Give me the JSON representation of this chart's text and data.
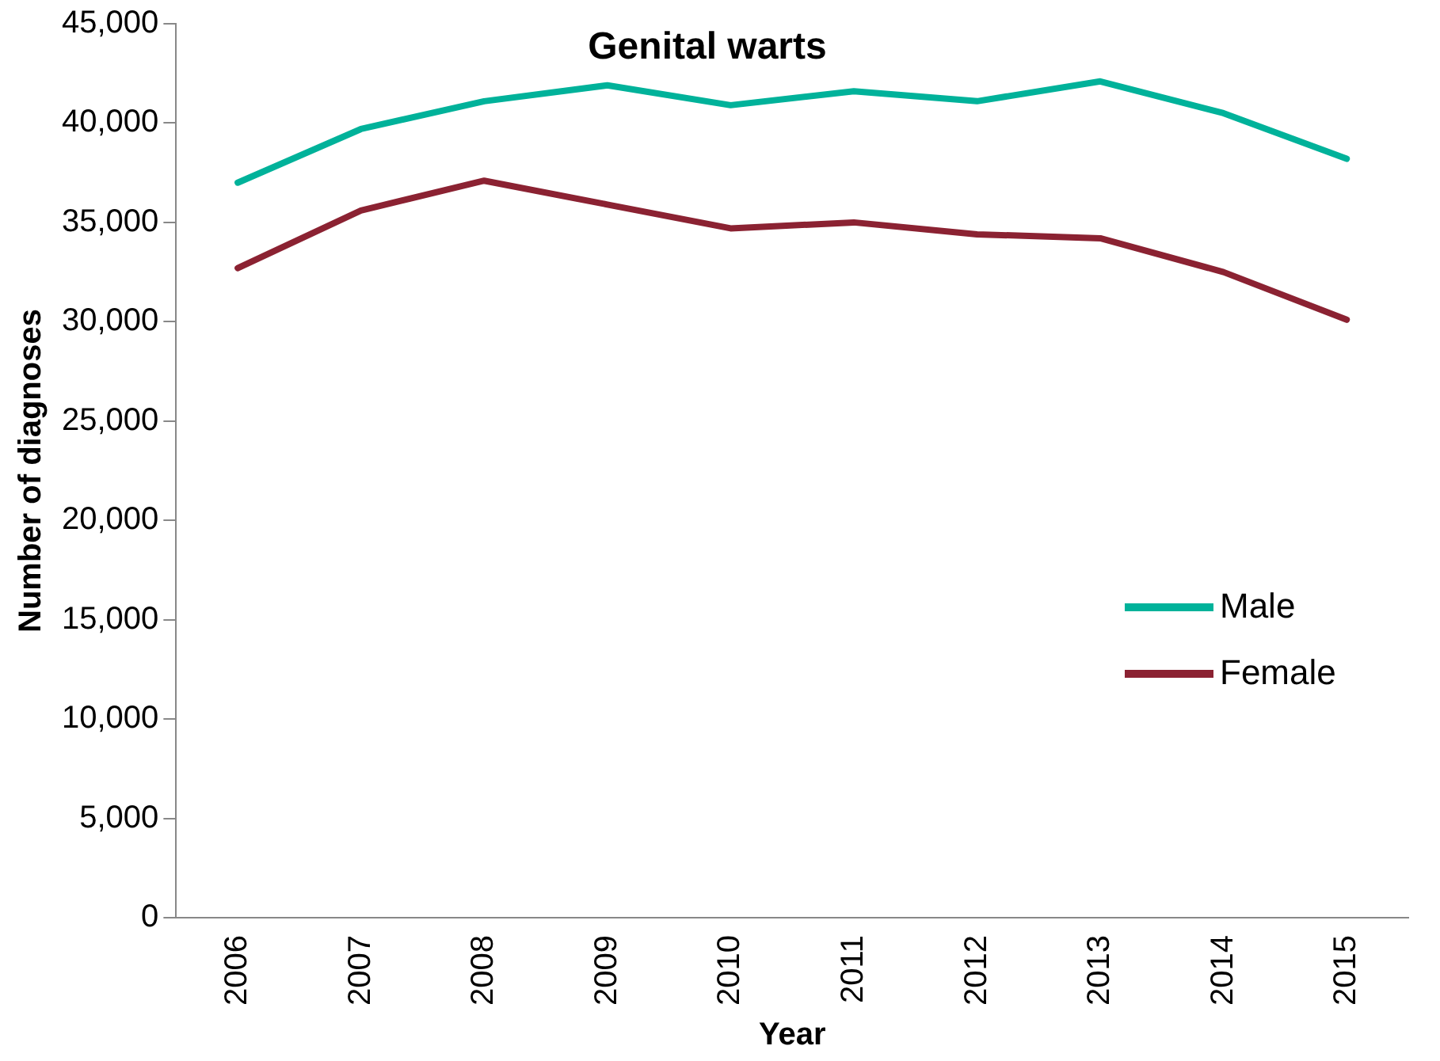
{
  "chart_data": {
    "type": "line",
    "title": "Genital warts",
    "xlabel": "Year",
    "ylabel": "Number of diagnoses",
    "categories": [
      "2006",
      "2007",
      "2008",
      "2009",
      "2010",
      "2011",
      "2012",
      "2013",
      "2014",
      "2015"
    ],
    "series": [
      {
        "name": "Male",
        "color": "#00b29a",
        "values": [
          37000,
          39700,
          41100,
          41900,
          40900,
          41600,
          41100,
          42100,
          40500,
          38200
        ]
      },
      {
        "name": "Female",
        "color": "#8b2232",
        "values": [
          32700,
          35600,
          37100,
          35900,
          34700,
          35000,
          34400,
          34200,
          32500,
          30100
        ]
      }
    ],
    "ylim": [
      0,
      45000
    ],
    "yticks": [
      0,
      {
        "value": 5000,
        "label": "5,000"
      },
      {
        "value": 10000,
        "label": "10,000"
      },
      {
        "value": 15000,
        "label": "15,000"
      },
      {
        "value": 20000,
        "label": "20,000"
      },
      {
        "value": 25000,
        "label": "25,000"
      },
      {
        "value": 30000,
        "label": "30,000"
      },
      {
        "value": 35000,
        "label": "35,000"
      },
      {
        "value": 40000,
        "label": "40,000"
      },
      {
        "value": 45000,
        "label": "45,000"
      }
    ],
    "grid": false,
    "legend": "bottom right",
    "marker": "none",
    "line_style": "solid"
  }
}
